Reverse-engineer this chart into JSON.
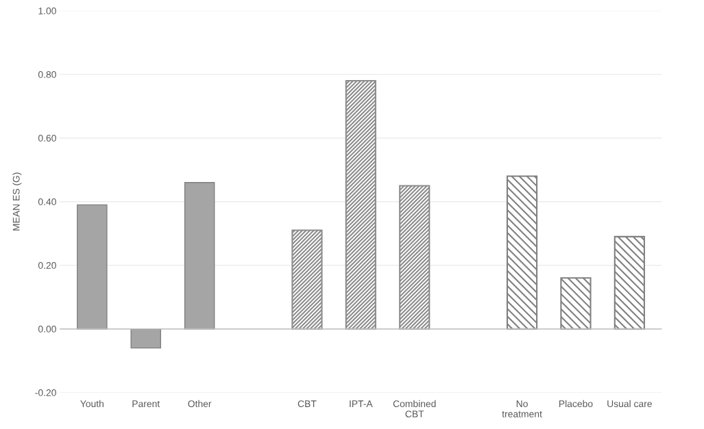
{
  "chart_data": {
    "type": "bar",
    "ylabel": "MEAN ES (G)",
    "categories": [
      "Youth",
      "Parent",
      "Other",
      null,
      "CBT",
      "IPT-A",
      "Combined CBT",
      null,
      "No treatment",
      "Placebo",
      "Usual care"
    ],
    "series": [
      {
        "color": "#a5a5a5",
        "values": [
          0.39,
          -0.06,
          0.46,
          null,
          null,
          null,
          null,
          null,
          null,
          null,
          null
        ]
      },
      {
        "color": "#8c8c8c",
        "values": [
          null,
          null,
          null,
          null,
          0.31,
          0.78,
          0.45,
          null,
          null,
          null,
          null
        ]
      },
      {
        "color": "#7f7f7f",
        "values": [
          null,
          null,
          null,
          null,
          null,
          null,
          null,
          null,
          0.48,
          0.16,
          0.29
        ]
      }
    ],
    "ylim": [
      -0.2,
      1.0
    ],
    "yticks": [
      {
        "value": -0.2,
        "label": "-0.20"
      },
      {
        "value": 0,
        "label": "0.00"
      },
      {
        "value": 0.2,
        "label": "0.20"
      },
      {
        "value": 0.4,
        "label": "0.40"
      },
      {
        "value": 0.6,
        "label": "0.60"
      },
      {
        "value": 0.8,
        "label": "0.80"
      },
      {
        "value": 1.0,
        "label": "1.00"
      }
    ],
    "grid": "y",
    "legend": false
  }
}
